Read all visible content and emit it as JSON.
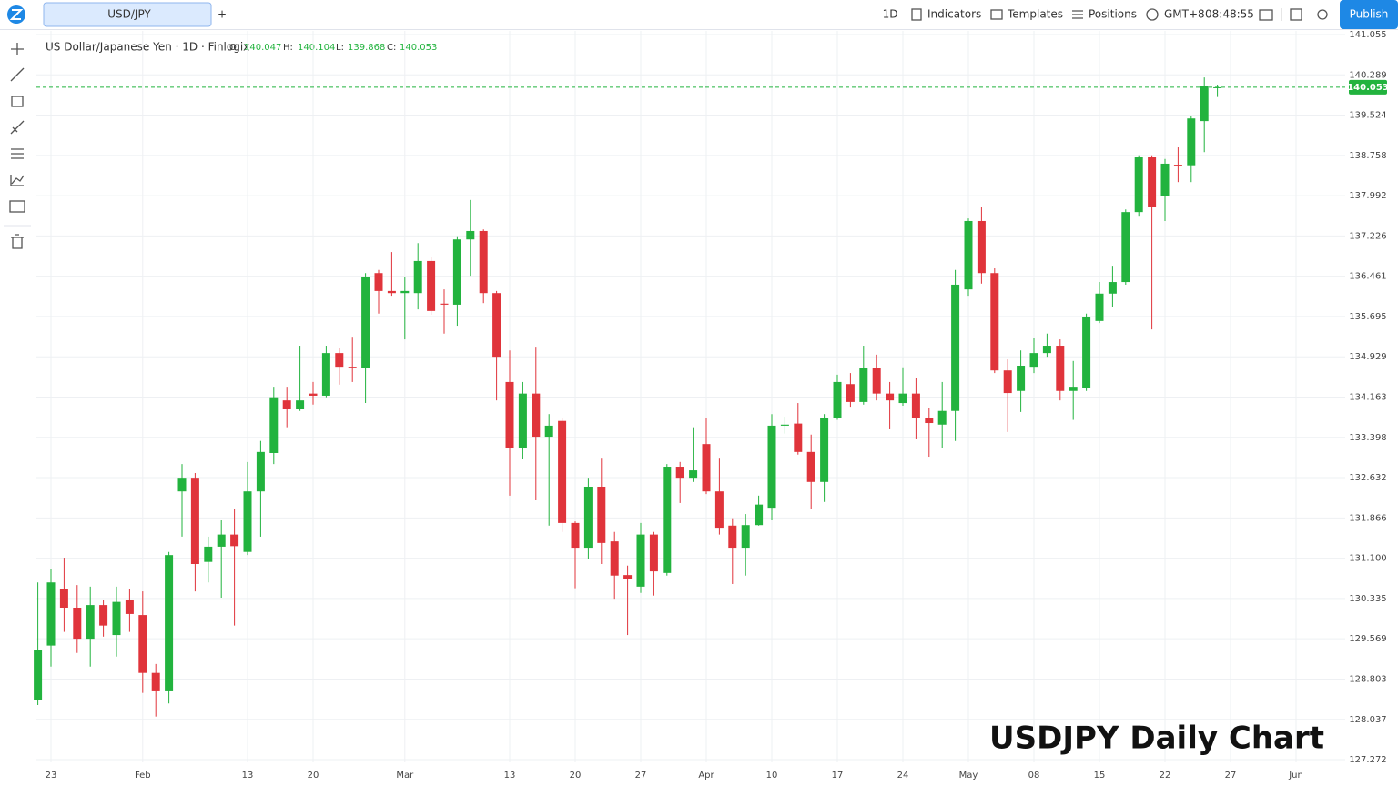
{
  "toolbar": {
    "tab": "USD/JPY",
    "add": "+",
    "interval": "1D",
    "indicators": "Indicators",
    "templates": "Templates",
    "positions": "Positions",
    "timezone": "GMT+8",
    "clock": "08:48:55",
    "publish": "Publish"
  },
  "chart_data": {
    "type": "candlestick",
    "legend": {
      "title": "US Dollar/Japanese Yen · 1D · Finlogix",
      "o": "O:",
      "h": "H:",
      "l": "L:",
      "c": "C:"
    },
    "watermark": "USDJPY Daily Chart",
    "categories": [
      null,
      "23",
      null,
      null,
      null,
      null,
      null,
      null,
      "Feb",
      null,
      null,
      null,
      null,
      null,
      null,
      null,
      "13",
      null,
      null,
      null,
      null,
      "20",
      null,
      null,
      null,
      null,
      null,
      null,
      "Mar",
      null,
      null,
      null,
      null,
      null,
      null,
      null,
      "13",
      null,
      null,
      null,
      null,
      "20",
      null,
      null,
      null,
      null,
      "27",
      null,
      null,
      null,
      null,
      "Apr",
      null,
      null,
      null,
      null,
      "10",
      null,
      null,
      null,
      null,
      "17",
      null,
      null,
      null,
      null,
      "24",
      null,
      null,
      null,
      null,
      "May",
      null,
      null,
      null,
      null,
      "08",
      null,
      null,
      null,
      null,
      "15",
      null,
      null,
      null,
      null,
      "22",
      null,
      null,
      null,
      null,
      "27",
      null,
      null,
      null,
      null,
      "Jun"
    ],
    "open": [
      128.4,
      129.44,
      130.51,
      130.16,
      129.57,
      130.21,
      129.64,
      130.3,
      130.02,
      128.92,
      128.57,
      132.37,
      132.63,
      131.03,
      131.32,
      131.55,
      131.22,
      132.37,
      133.1,
      134.1,
      133.93,
      134.23,
      134.19,
      135.0,
      134.74,
      134.71,
      136.52,
      136.18,
      136.14,
      136.14,
      136.75,
      135.94,
      135.92,
      137.16,
      137.32,
      136.14,
      134.45,
      133.19,
      134.23,
      133.41,
      133.71,
      131.77,
      131.3,
      132.46,
      131.42,
      130.78,
      130.56,
      131.55,
      130.82,
      132.84,
      132.63,
      133.27,
      132.37,
      131.72,
      131.3,
      131.73,
      132.06,
      133.62,
      133.66,
      133.12,
      132.55,
      133.76,
      134.41,
      134.07,
      134.71,
      134.23,
      134.05,
      134.23,
      133.76,
      133.64,
      133.9,
      136.21,
      137.51,
      136.52,
      134.67,
      134.28,
      134.74,
      135.0,
      135.14,
      134.28,
      134.33,
      135.61,
      136.13,
      136.35,
      137.68,
      138.72,
      137.98,
      138.58,
      138.57,
      139.41,
      140.047,
      null,
      null,
      null,
      null,
      null,
      null
    ],
    "high": [
      130.64,
      130.9,
      131.11,
      130.59,
      130.56,
      130.3,
      130.56,
      130.51,
      130.47,
      129.09,
      131.22,
      132.89,
      132.72,
      131.51,
      131.82,
      132.03,
      132.93,
      133.33,
      134.36,
      134.36,
      135.14,
      134.45,
      135.14,
      135.09,
      135.31,
      136.52,
      136.58,
      136.92,
      136.44,
      137.09,
      136.82,
      136.21,
      137.22,
      137.91,
      137.35,
      136.18,
      135.05,
      134.45,
      135.12,
      133.84,
      133.76,
      131.8,
      132.63,
      133.01,
      131.6,
      130.96,
      131.77,
      131.6,
      132.89,
      132.93,
      133.59,
      133.76,
      133.01,
      131.86,
      131.94,
      132.29,
      133.84,
      133.79,
      134.05,
      133.45,
      133.84,
      134.59,
      134.62,
      135.14,
      134.97,
      134.45,
      134.73,
      134.53,
      133.96,
      134.45,
      136.58,
      137.56,
      137.77,
      136.61,
      134.88,
      135.05,
      135.28,
      135.37,
      135.26,
      134.85,
      135.75,
      136.35,
      136.66,
      137.73,
      138.76,
      138.76,
      138.69,
      138.91,
      139.5,
      140.24,
      140.104,
      null,
      null,
      null,
      null,
      null,
      null
    ],
    "low": [
      128.31,
      129.04,
      129.7,
      129.3,
      129.04,
      129.61,
      129.23,
      129.7,
      128.54,
      128.09,
      128.34,
      131.51,
      130.47,
      130.64,
      130.35,
      129.82,
      131.16,
      131.51,
      132.89,
      133.59,
      133.9,
      134.02,
      134.16,
      134.4,
      134.45,
      134.05,
      135.75,
      136.09,
      135.26,
      135.83,
      135.73,
      135.37,
      135.52,
      136.47,
      135.95,
      134.1,
      132.29,
      132.98,
      132.2,
      131.72,
      131.6,
      130.53,
      131.08,
      130.99,
      130.33,
      129.64,
      130.44,
      130.39,
      130.77,
      132.15,
      132.55,
      132.32,
      131.55,
      130.61,
      130.77,
      131.72,
      131.82,
      133.47,
      133.07,
      132.03,
      132.17,
      133.73,
      133.98,
      134.02,
      134.1,
      133.55,
      134.0,
      133.36,
      133.03,
      133.19,
      133.33,
      136.09,
      136.32,
      134.62,
      133.5,
      133.88,
      134.62,
      134.93,
      134.1,
      133.73,
      134.28,
      135.57,
      135.88,
      136.3,
      137.61,
      135.45,
      137.51,
      138.25,
      138.25,
      138.82,
      139.868,
      null,
      null,
      null,
      null,
      null,
      null
    ],
    "close": [
      129.35,
      130.64,
      130.16,
      129.57,
      130.21,
      129.82,
      130.27,
      130.04,
      128.92,
      128.57,
      131.16,
      132.63,
      130.99,
      131.32,
      131.55,
      131.33,
      132.37,
      133.12,
      134.16,
      133.93,
      134.1,
      134.19,
      135.0,
      134.74,
      134.71,
      136.44,
      136.18,
      136.14,
      136.18,
      136.75,
      135.8,
      135.92,
      137.16,
      137.32,
      136.14,
      134.93,
      133.2,
      134.23,
      133.41,
      133.62,
      131.77,
      131.3,
      132.46,
      131.39,
      130.77,
      130.7,
      131.55,
      130.85,
      132.84,
      132.63,
      132.77,
      132.37,
      131.68,
      131.3,
      131.73,
      132.12,
      133.62,
      133.64,
      133.12,
      132.55,
      133.76,
      134.45,
      134.07,
      134.71,
      134.23,
      134.1,
      134.23,
      133.76,
      133.67,
      133.9,
      136.3,
      137.51,
      136.52,
      134.67,
      134.24,
      134.76,
      135.0,
      135.14,
      134.28,
      134.36,
      135.69,
      136.13,
      136.35,
      137.68,
      138.72,
      137.77,
      138.6,
      138.57,
      139.46,
      140.07,
      140.053,
      null,
      null,
      null,
      null,
      null,
      null
    ],
    "up_color": "#22b33e",
    "down_color": "#e0343b",
    "ylim": [
      127.22,
      141.124
    ],
    "yticks": [
      127.272,
      128.037,
      128.803,
      129.569,
      130.335,
      {
        "value": 131.1,
        "label": "131.100"
      },
      131.866,
      132.632,
      133.398,
      134.163,
      134.929,
      135.695,
      136.461,
      137.226,
      137.992,
      138.758,
      139.524,
      140.289,
      141.055
    ],
    "grid": true
  }
}
